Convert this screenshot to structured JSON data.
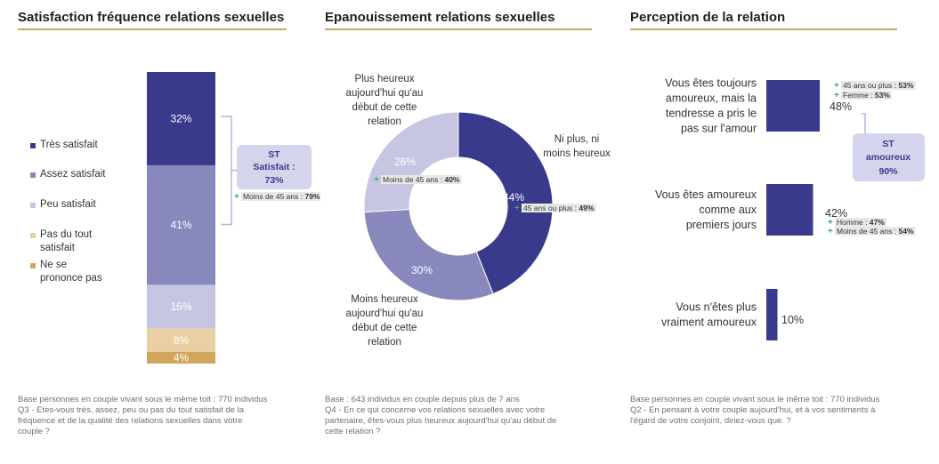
{
  "chart_data": [
    {
      "type": "bar",
      "title": "Satisfaction fréquence relations sexuelles",
      "segments": [
        {
          "label": "Très satisfait",
          "value": 32,
          "value_label": "32%",
          "color": "#3a3a8c",
          "text_color": "#ffffff"
        },
        {
          "label": "Assez satisfait",
          "value": 41,
          "value_label": "41%",
          "color": "#8888bc",
          "text_color": "#ffffff"
        },
        {
          "label": "Peu satisfait",
          "value": 15,
          "value_label": "15%",
          "color": "#c6c6e2",
          "text_color": "#ffffff"
        },
        {
          "label": "Pas du tout satisfait",
          "value": 8,
          "value_label": "8%",
          "color": "#e8d0a4",
          "text_color": "#ffffff"
        },
        {
          "label": "Ne se prononce pas",
          "value": 4,
          "value_label": "4%",
          "color": "#d0a65c",
          "text_color": "#ffffff"
        }
      ],
      "subtotal": {
        "line1": "ST",
        "line2": "Satisfait :",
        "line3": "73%"
      },
      "note": {
        "plus": "+",
        "text": "Moins de 45 ans : ",
        "value": "79%"
      },
      "footnote": [
        "Base personnes en couple vivant sous le même toit : 770 individus",
        "Q3 - Etes-vous très, assez, peu ou pas du tout satisfait de la",
        "fréquence et de la qualité des relations sexuelles dans votre",
        "couple ?"
      ]
    },
    {
      "type": "pie",
      "title": "Epanouissement relations sexuelles",
      "slices": [
        {
          "label": [
            "Ni plus, ni",
            "moins heureux"
          ],
          "value": 44,
          "value_label": "44%",
          "color": "#3a3a8c"
        },
        {
          "label": [
            "Moins heureux",
            "aujourd'hui qu'au",
            "début de cette",
            "relation"
          ],
          "value": 30,
          "value_label": "30%",
          "color": "#8888bc"
        },
        {
          "label": [
            "Plus heureux",
            "aujourd'hui qu'au",
            "début de cette",
            "relation"
          ],
          "value": 26,
          "value_label": "26%",
          "color": "#c6c6e2"
        }
      ],
      "notes": [
        {
          "plus": "+",
          "text": "45 ans ou plus : ",
          "value": "49%"
        },
        {
          "plus": "+",
          "text": "Moins de 45 ans : ",
          "value": "40%"
        }
      ],
      "footnote": [
        "Base : 643 individus en couple depuis plus de 7 ans",
        "Q4 - En ce qui concerne vos relations sexuelles avec votre",
        "partenaire, êtes-vous plus heureux aujourd'hui qu'au début de",
        "cette relation ?"
      ]
    },
    {
      "type": "bar",
      "title": "Perception de la relation",
      "categories": [
        [
          "Vous êtes toujours",
          "amoureux, mais la",
          "tendresse a pris le",
          "pas sur l'amour"
        ],
        [
          "Vous êtes amoureux",
          "comme aux",
          "premiers jours"
        ],
        [
          "Vous n'êtes plus",
          "vraiment amoureux"
        ]
      ],
      "values": [
        48,
        42,
        10
      ],
      "value_labels": [
        "48%",
        "42%",
        "10%"
      ],
      "bar_color": "#3a3a8c",
      "notes": [
        [
          {
            "plus": "+",
            "text": "45 ans ou plus : ",
            "value": "53%"
          },
          {
            "plus": "+",
            "text": "Femme : ",
            "value": "53%"
          }
        ],
        [
          {
            "plus": "+",
            "text": "Homme : ",
            "value": "47%"
          },
          {
            "plus": "+",
            "text": "Moins de 45 ans : ",
            "value": "54%"
          }
        ],
        []
      ],
      "subtotal": {
        "line1": "ST",
        "line2": "amoureux",
        "line3": "90%"
      },
      "footnote": [
        "Base personnes en couple vivant sous le même toit : 770 individus",
        "Q2 - En pensant à votre couple aujourd'hui, et à vos sentiments à",
        "l'égard de votre conjoint, diriez-vous que. ?"
      ]
    }
  ],
  "colors": {
    "accent_rule": "#c8a560",
    "plus": "#3aa860",
    "note_bg": "#e8e8e8",
    "subtotal_bg": "#d4d4ec",
    "subtotal_text": "#3a3a8c"
  }
}
